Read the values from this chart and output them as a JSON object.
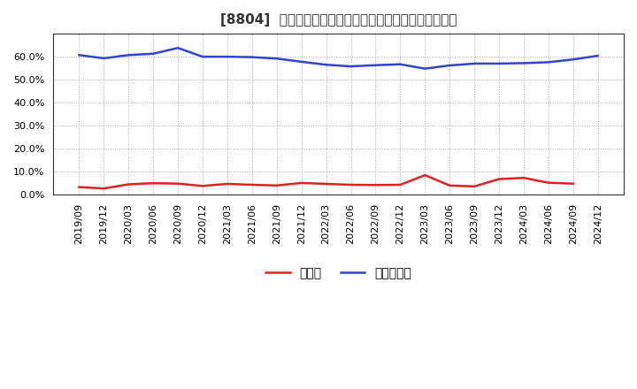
{
  "title": "[8804]  現預金、有利子負債の総資産に対する比率の推移",
  "background_color": "#ffffff",
  "plot_bg_color": "#ffffff",
  "grid_color": "#aaaaaa",
  "ylim": [
    0.0,
    0.7
  ],
  "yticks": [
    0.0,
    0.1,
    0.2,
    0.3,
    0.4,
    0.5,
    0.6
  ],
  "x_labels": [
    "2019/09",
    "2019/12",
    "2020/03",
    "2020/06",
    "2020/09",
    "2020/12",
    "2021/03",
    "2021/06",
    "2021/09",
    "2021/12",
    "2022/03",
    "2022/06",
    "2022/09",
    "2022/12",
    "2023/03",
    "2023/06",
    "2023/09",
    "2023/12",
    "2024/03",
    "2024/06",
    "2024/09",
    "2024/12"
  ],
  "cash_values": [
    0.033,
    0.027,
    0.045,
    0.05,
    0.048,
    0.038,
    0.047,
    0.043,
    0.04,
    0.051,
    0.047,
    0.043,
    0.042,
    0.043,
    0.085,
    0.04,
    0.036,
    0.068,
    0.073,
    0.052,
    0.048,
    null
  ],
  "debt_values": [
    0.607,
    0.593,
    0.607,
    0.613,
    0.638,
    0.6,
    0.6,
    0.598,
    0.592,
    0.578,
    0.565,
    0.558,
    0.563,
    0.567,
    0.548,
    0.562,
    0.57,
    0.57,
    0.572,
    0.576,
    0.588,
    0.604
  ],
  "cash_color": "#dd2222",
  "debt_color": "#3344cc",
  "cash_label": "現預金",
  "debt_label": "有利子負債",
  "line_width": 1.8,
  "title_fontsize": 11,
  "legend_fontsize": 10,
  "tick_fontsize": 8
}
